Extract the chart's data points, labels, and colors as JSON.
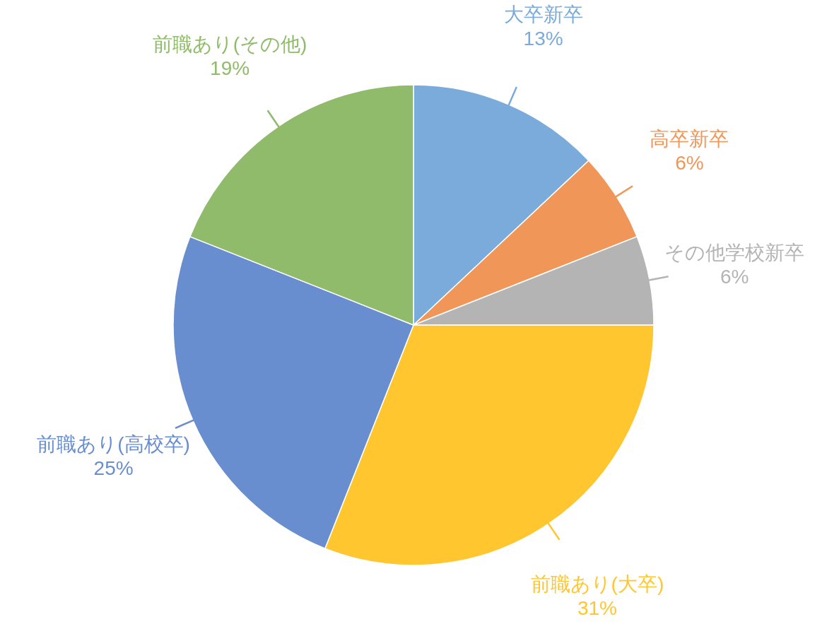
{
  "chart_data": {
    "type": "pie",
    "categories": [
      "大卒新卒",
      "高卒新卒",
      "その他学校新卒",
      "前職あり(大卒)",
      "前職あり(高校卒)",
      "前職あり(その他)"
    ],
    "values": [
      13,
      6,
      6,
      31,
      25,
      19
    ],
    "colors": [
      "#7aabdb",
      "#f09658",
      "#b4b4b4",
      "#ffc630",
      "#698ecf",
      "#8fbb6a"
    ],
    "value_labels": [
      "13%",
      "6%",
      "6%",
      "31%",
      "25%",
      "19%"
    ]
  }
}
